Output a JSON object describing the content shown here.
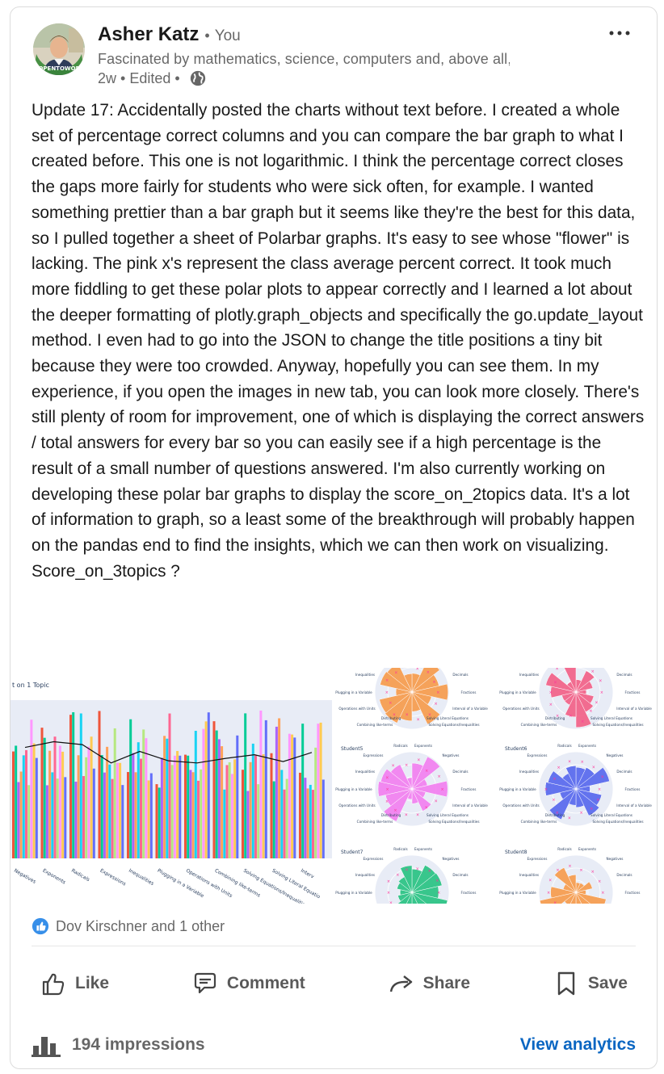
{
  "post": {
    "author": {
      "name": "Asher Katz",
      "separator": "•",
      "relation": "You",
      "headline": "Fascinated by mathematics, science, computers and, above all, cr...",
      "time": "2w",
      "edited": "Edited",
      "visibility_icon": "globe-icon",
      "avatar_badge": "#OPENTOWORK"
    },
    "text": "Update 17: Accidentally posted the charts without text before. I created a whole set of percentage correct columns and you can compare the bar graph to what I created before. This one is not logarithmic. I think the percentage correct closes the gaps more fairly for students who were sick often, for example. I wanted something prettier than a bar graph but it seems like they're the best for this data, so I pulled together a sheet of Polarbar graphs. It's easy to see whose \"flower\" is lacking. The pink x's represent the class average percent correct. It took much more fiddling to get these polar plots to appear correctly and I learned a lot about the deeper formatting of plotly.graph_objects and specifically the go.update_layout method. I even had to go into the JSON to change the title positions a tiny bit because they were too crowded. Anyway, hopefully you can see them. In my experience, if you open the images in new tab, you can look more closely. There's still plenty of room for improvement, one of which is displaying the correct answers / total answers for every bar so you can easily see if a high percentage is the result of a small number of questions answered. I'm also currently working on developing these polar bar graphs to display the score_on_2topics data. It's a lot of information to graph, so a least some of the breakthrough will probably happen on the pandas end to find the insights, which we can then work on visualizing.\nScore_on_3topics ?"
  },
  "media": {
    "bar_chart": {
      "title_fragment": "t on 1 Topic",
      "x_labels": [
        "Negatives",
        "Exponents",
        "Radicals",
        "Expressions",
        "Inequalities",
        "Plugging in a Variable",
        "Operations with Units",
        "Combining like-terms",
        "Solving Equations/Inequalities",
        "Solving Literal Equatio",
        "Interv"
      ]
    },
    "polar_grid": {
      "students": [
        "Student5",
        "Student6",
        "Student7",
        "Student8"
      ],
      "axis_labels": [
        "Radicals",
        "Exponents",
        "Expressions",
        "Negatives",
        "Inequalities",
        "Decimals",
        "Plugging in a Variable",
        "Fractions",
        "Operations with Units",
        "Interval of a Variable",
        "Combining like-terms",
        "Solving Equations/Inequalities",
        "Distributing",
        "Solving Literal Equations"
      ],
      "colors": [
        "#f79a4a",
        "#f25f86",
        "#f27ef0",
        "#5566ee",
        "#26c281",
        "#f79a4a"
      ]
    }
  },
  "reactions": {
    "summary": "Dov Kirschner and 1 other"
  },
  "actions": {
    "like": "Like",
    "comment": "Comment",
    "share": "Share",
    "save": "Save"
  },
  "footer": {
    "impressions": "194 impressions",
    "analytics": "View analytics"
  }
}
